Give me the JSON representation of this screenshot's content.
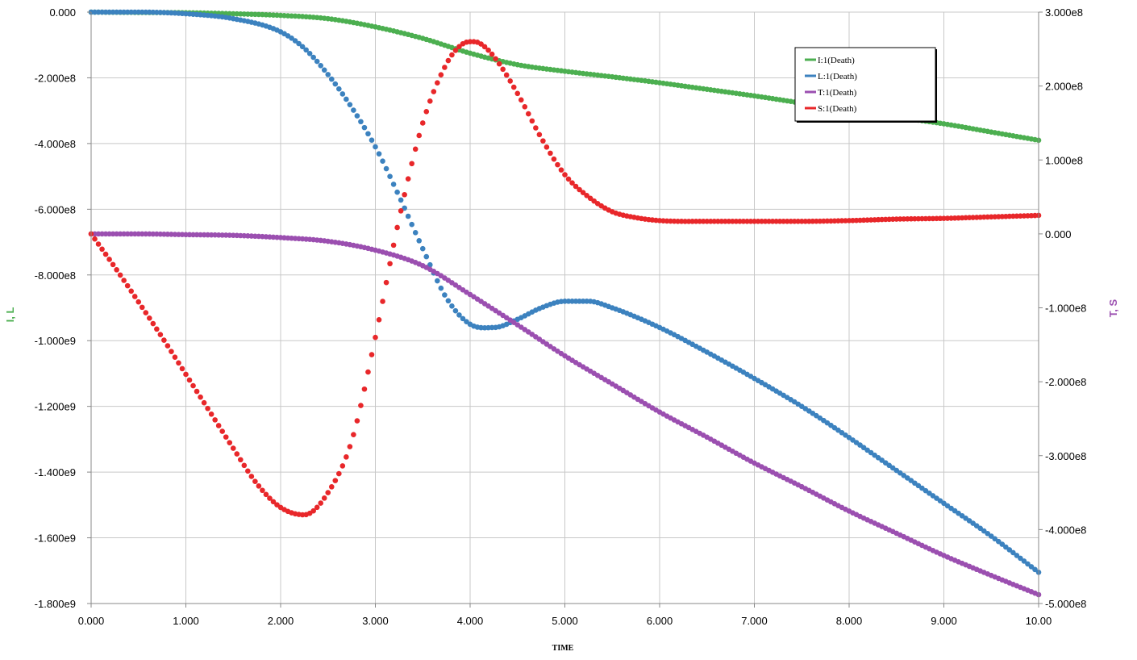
{
  "chart_data": {
    "type": "scatter",
    "xlabel": "TIME",
    "ylabel_left": "I, L",
    "ylabel_right": "T, S",
    "xlim": [
      0,
      10
    ],
    "ylim_left": [
      -1800000000,
      0
    ],
    "ylim_right": [
      -500000000,
      300000000
    ],
    "grid": true,
    "legend_placement": "top-right",
    "x_ticks": [
      "0.000",
      "1.000",
      "2.000",
      "3.000",
      "4.000",
      "5.000",
      "6.000",
      "7.000",
      "8.000",
      "9.000",
      "10.00"
    ],
    "y_left_ticks": [
      {
        "value": 0,
        "label": "0.000"
      },
      {
        "value": -200000000,
        "label": "-2.000e8"
      },
      {
        "value": -400000000,
        "label": "-4.000e8"
      },
      {
        "value": -600000000,
        "label": "-6.000e8"
      },
      {
        "value": -800000000,
        "label": "-8.000e8"
      },
      {
        "value": -1000000000,
        "label": "-1.000e9"
      },
      {
        "value": -1200000000,
        "label": "-1.200e9"
      },
      {
        "value": -1400000000,
        "label": "-1.400e9"
      },
      {
        "value": -1600000000,
        "label": "-1.600e9"
      },
      {
        "value": -1800000000,
        "label": "-1.800e9"
      }
    ],
    "y_right_ticks": [
      {
        "value": 300000000,
        "label": "3.000e8"
      },
      {
        "value": 200000000,
        "label": "2.000e8"
      },
      {
        "value": 100000000,
        "label": "1.000e8"
      },
      {
        "value": 0,
        "label": "0.000"
      },
      {
        "value": -100000000,
        "label": "-1.000e8"
      },
      {
        "value": -200000000,
        "label": "-2.000e8"
      },
      {
        "value": -300000000,
        "label": "-3.000e8"
      },
      {
        "value": -400000000,
        "label": "-4.000e8"
      },
      {
        "value": -500000000,
        "label": "-5.000e8"
      }
    ],
    "series": [
      {
        "name": "I:1(Death)",
        "axis": "left",
        "color": "#4caf50",
        "x": [
          0,
          0.5,
          1,
          1.5,
          2,
          2.5,
          3,
          3.5,
          4,
          4.5,
          5,
          5.5,
          6,
          6.5,
          7,
          7.5,
          8,
          8.5,
          9,
          9.5,
          10
        ],
        "y": [
          0,
          -1000000,
          -2000000,
          -5000000,
          -10000000,
          -20000000,
          -45000000,
          -80000000,
          -125000000,
          -160000000,
          -180000000,
          -197000000,
          -215000000,
          -235000000,
          -255000000,
          -277000000,
          -300000000,
          -320000000,
          -340000000,
          -365000000,
          -390000000
        ]
      },
      {
        "name": "L:1(Death)",
        "axis": "left",
        "color": "#3c82bf",
        "x": [
          0,
          0.5,
          1,
          1.5,
          2,
          2.25,
          2.5,
          2.75,
          3,
          3.25,
          3.5,
          3.75,
          4,
          4.25,
          4.5,
          4.75,
          5,
          5.25,
          5.5,
          6,
          6.5,
          7,
          7.5,
          8,
          8.5,
          9,
          9.5,
          10
        ],
        "y": [
          0,
          0,
          -5000000,
          -20000000,
          -60000000,
          -110000000,
          -190000000,
          -290000000,
          -410000000,
          -560000000,
          -720000000,
          -870000000,
          -950000000,
          -960000000,
          -935000000,
          -900000000,
          -880000000,
          -880000000,
          -900000000,
          -960000000,
          -1035000000,
          -1115000000,
          -1200000000,
          -1295000000,
          -1395000000,
          -1495000000,
          -1595000000,
          -1705000000
        ]
      },
      {
        "name": "T:1(Death)",
        "axis": "right",
        "color": "#9b4fb0",
        "x": [
          0,
          0.5,
          1,
          1.5,
          2,
          2.5,
          3,
          3.5,
          4,
          4.5,
          5,
          5.5,
          6,
          6.5,
          7,
          7.5,
          8,
          8.5,
          9,
          9.5,
          10
        ],
        "y": [
          0,
          0,
          -1000000,
          -2000000,
          -5000000,
          -10000000,
          -22000000,
          -43000000,
          -82000000,
          -123000000,
          -165000000,
          -203000000,
          -241000000,
          -275000000,
          -310000000,
          -342000000,
          -375000000,
          -405000000,
          -435000000,
          -462000000,
          -488000000
        ]
      },
      {
        "name": "S:1(Death)",
        "axis": "right",
        "color": "#e8272a",
        "x": [
          0,
          0.25,
          0.5,
          0.75,
          1,
          1.25,
          1.5,
          1.75,
          2,
          2.25,
          2.5,
          2.75,
          3,
          3.25,
          3.5,
          3.75,
          3.9,
          4,
          4.1,
          4.25,
          4.5,
          4.75,
          5,
          5.25,
          5.5,
          5.75,
          6,
          6.5,
          7,
          7.5,
          8,
          8.5,
          9,
          9.5,
          10
        ],
        "y": [
          0,
          -45000000,
          -92000000,
          -140000000,
          -190000000,
          -240000000,
          -290000000,
          -338000000,
          -370000000,
          -380000000,
          -350000000,
          -280000000,
          -140000000,
          20000000,
          150000000,
          230000000,
          255000000,
          260000000,
          258000000,
          240000000,
          190000000,
          130000000,
          80000000,
          50000000,
          30000000,
          22000000,
          18000000,
          17000000,
          17000000,
          17000000,
          18000000,
          20000000,
          21000000,
          23000000,
          25000000
        ]
      }
    ]
  }
}
